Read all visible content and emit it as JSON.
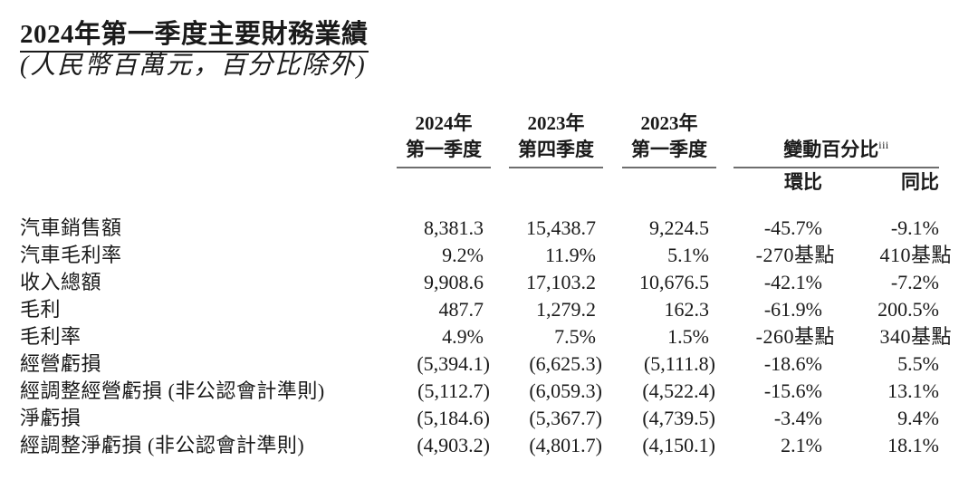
{
  "page": {
    "title": "2024年第一季度主要財務業績",
    "subtitle": "(人民幣百萬元，百分比除外)",
    "table": {
      "col_headers": [
        "2024年\n第一季度",
        "2023年\n第四季度",
        "2023年\n第一季度"
      ],
      "change_header": {
        "label": "變動百分比",
        "superscript": "iii"
      },
      "sub_headers": [
        "環比",
        "同比"
      ],
      "rows": [
        {
          "label": "汽車銷售額",
          "values": [
            "8,381.3",
            "15,438.7",
            "9,224.5",
            "-45.7%",
            "-9.1%"
          ]
        },
        {
          "label": "汽車毛利率",
          "values": [
            "9.2%",
            "11.9%",
            "5.1%",
            "-270基點",
            "410基點"
          ]
        },
        {
          "label": "收入總額",
          "values": [
            "9,908.6",
            "17,103.2",
            "10,676.5",
            "-42.1%",
            "-7.2%"
          ]
        },
        {
          "label": "毛利",
          "values": [
            "487.7",
            "1,279.2",
            "162.3",
            "-61.9%",
            "200.5%"
          ]
        },
        {
          "label": "毛利率",
          "values": [
            "4.9%",
            "7.5%",
            "1.5%",
            "-260基點",
            "340基點"
          ]
        },
        {
          "label": "經營虧損",
          "values": [
            "(5,394.1)",
            "(6,625.3)",
            "(5,111.8)",
            "-18.6%",
            "5.5%"
          ]
        },
        {
          "label": "經調整經營虧損 (非公認會計準則)",
          "values": [
            "(5,112.7)",
            "(6,059.3)",
            "(4,522.4)",
            "-15.6%",
            "13.1%"
          ]
        },
        {
          "label": "淨虧損",
          "values": [
            "(5,184.6)",
            "(5,367.7)",
            "(4,739.5)",
            "-3.4%",
            "9.4%"
          ]
        },
        {
          "label": "經調整淨虧損 (非公認會計準則)",
          "values": [
            "(4,903.2)",
            "(4,801.7)",
            "(4,150.1)",
            "2.1%",
            "18.1%"
          ]
        }
      ]
    }
  }
}
